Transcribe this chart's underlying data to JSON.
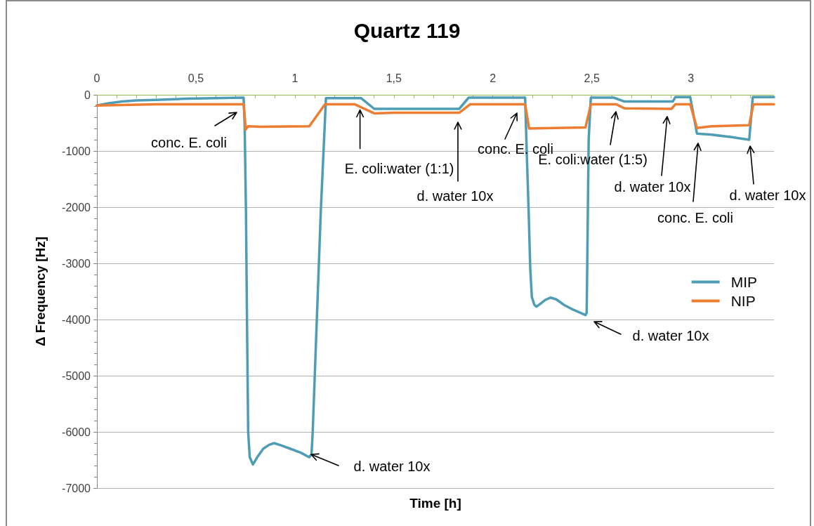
{
  "chart_data": {
    "type": "line",
    "title": "Quartz 119",
    "xlabel": "Time [h]",
    "ylabel": "Δ Frequency [Hz]",
    "xlim": [
      0,
      3.42
    ],
    "ylim": [
      -7000,
      0
    ],
    "xticks": [
      0,
      {
        "value": 0.1,
        "label": null
      },
      {
        "value": 0.2,
        "label": null
      },
      {
        "value": 0.3,
        "label": null
      },
      {
        "value": 0.4,
        "label": null
      },
      {
        "value": 0.5,
        "label": "0,5"
      },
      {
        "value": 0.6,
        "label": null
      },
      {
        "value": 0.7,
        "label": null
      },
      {
        "value": 0.8,
        "label": null
      },
      {
        "value": 0.9,
        "label": null
      },
      1,
      {
        "value": 1.1,
        "label": null
      },
      {
        "value": 1.2,
        "label": null
      },
      {
        "value": 1.3,
        "label": null
      },
      {
        "value": 1.4,
        "label": null
      },
      {
        "value": 1.5,
        "label": "1,5"
      },
      {
        "value": 1.6,
        "label": null
      },
      {
        "value": 1.7,
        "label": null
      },
      {
        "value": 1.8,
        "label": null
      },
      {
        "value": 1.9,
        "label": null
      },
      2,
      {
        "value": 2.1,
        "label": null
      },
      {
        "value": 2.2,
        "label": null
      },
      {
        "value": 2.3,
        "label": null
      },
      {
        "value": 2.4,
        "label": null
      },
      {
        "value": 2.5,
        "label": "2,5"
      },
      {
        "value": 2.6,
        "label": null
      },
      {
        "value": 2.7,
        "label": null
      },
      {
        "value": 2.8,
        "label": null
      },
      {
        "value": 2.9,
        "label": null
      },
      3,
      {
        "value": 3.1,
        "label": null
      },
      {
        "value": 3.2,
        "label": null
      },
      {
        "value": 3.3,
        "label": null
      },
      {
        "value": 3.4,
        "label": null
      }
    ],
    "yticks": [
      -7000,
      {
        "value": -6800,
        "label": null
      },
      {
        "value": -6600,
        "label": null
      },
      {
        "value": -6400,
        "label": null
      },
      {
        "value": -6200,
        "label": null
      },
      -6000,
      {
        "value": -5800,
        "label": null
      },
      {
        "value": -5600,
        "label": null
      },
      {
        "value": -5400,
        "label": null
      },
      {
        "value": -5200,
        "label": null
      },
      -5000,
      {
        "value": -4800,
        "label": null
      },
      {
        "value": -4600,
        "label": null
      },
      {
        "value": -4400,
        "label": null
      },
      {
        "value": -4200,
        "label": null
      },
      -4000,
      {
        "value": -3800,
        "label": null
      },
      {
        "value": -3600,
        "label": null
      },
      {
        "value": -3400,
        "label": null
      },
      {
        "value": -3200,
        "label": null
      },
      -3000,
      {
        "value": -2800,
        "label": null
      },
      {
        "value": -2600,
        "label": null
      },
      {
        "value": -2400,
        "label": null
      },
      {
        "value": -2200,
        "label": null
      },
      -2000,
      {
        "value": -1800,
        "label": null
      },
      {
        "value": -1600,
        "label": null
      },
      {
        "value": -1400,
        "label": null
      },
      {
        "value": -1200,
        "label": null
      },
      -1000,
      {
        "value": -800,
        "label": null
      },
      {
        "value": -600,
        "label": null
      },
      {
        "value": -400,
        "label": null
      },
      {
        "value": -200,
        "label": null
      },
      0
    ],
    "grid": "y",
    "legend": "right",
    "marker": "none",
    "line_style": "solid",
    "series": [
      {
        "name": "MIP",
        "color": "#4e9db5",
        "x": [
          0,
          0.06,
          0.127,
          0.2,
          0.298,
          0.45,
          0.6,
          0.741,
          0.746,
          0.753,
          0.758,
          0.764,
          0.772,
          0.788,
          0.81,
          0.84,
          0.87,
          0.895,
          0.93,
          0.977,
          1.03,
          1.072,
          1.084,
          1.09,
          1.131,
          1.157,
          1.3,
          1.335,
          1.401,
          1.5,
          1.83,
          1.878,
          2.163,
          2.171,
          2.181,
          2.189,
          2.197,
          2.21,
          2.22,
          2.24,
          2.265,
          2.291,
          2.32,
          2.36,
          2.397,
          2.43,
          2.468,
          2.474,
          2.484,
          2.495,
          2.61,
          2.665,
          2.909,
          2.922,
          2.997,
          3.031,
          3.105,
          3.2,
          3.295,
          3.313,
          3.42
        ],
        "values": [
          -190,
          -150,
          -120,
          -100,
          -90,
          -70,
          -60,
          -50,
          -500,
          -2100,
          -4000,
          -6000,
          -6450,
          -6580,
          -6450,
          -6300,
          -6230,
          -6200,
          -6240,
          -6300,
          -6370,
          -6450,
          -6400,
          -6000,
          -2060,
          -60,
          -60,
          -60,
          -250,
          -250,
          -250,
          -50,
          -50,
          -1000,
          -2100,
          -3100,
          -3600,
          -3740,
          -3770,
          -3720,
          -3650,
          -3610,
          -3640,
          -3740,
          -3810,
          -3860,
          -3920,
          -3880,
          -800,
          -50,
          -50,
          -120,
          -120,
          -40,
          -40,
          -690,
          -710,
          -750,
          -800,
          -40,
          -40
        ]
      },
      {
        "name": "NIP",
        "color": "#ed7d31",
        "x": [
          0,
          0.3,
          0.741,
          0.747,
          0.751,
          0.764,
          0.824,
          1.073,
          1.152,
          1.303,
          1.401,
          1.5,
          1.83,
          1.885,
          2.163,
          2.183,
          2.468,
          2.495,
          2.624,
          2.665,
          2.902,
          2.922,
          2.997,
          3.031,
          3.105,
          3.295,
          3.316,
          3.42
        ],
        "values": [
          -190,
          -170,
          -170,
          -400,
          -620,
          -560,
          -570,
          -560,
          -170,
          -170,
          -330,
          -320,
          -320,
          -170,
          -170,
          -600,
          -580,
          -170,
          -170,
          -240,
          -250,
          -170,
          -170,
          -590,
          -560,
          -540,
          -170,
          -170
        ]
      }
    ],
    "annotations": [
      "conc. E. coli",
      {
        "text": "E. coli:water (1:1)",
        "x": 1.329,
        "y": -270
      },
      "d. water 10x",
      "conc. E. coli",
      "E. coli:water (1:5)",
      "d. water 10x",
      "conc. E. coli",
      "d. water 10x",
      "d. water 10x",
      "d. water 10x"
    ]
  }
}
